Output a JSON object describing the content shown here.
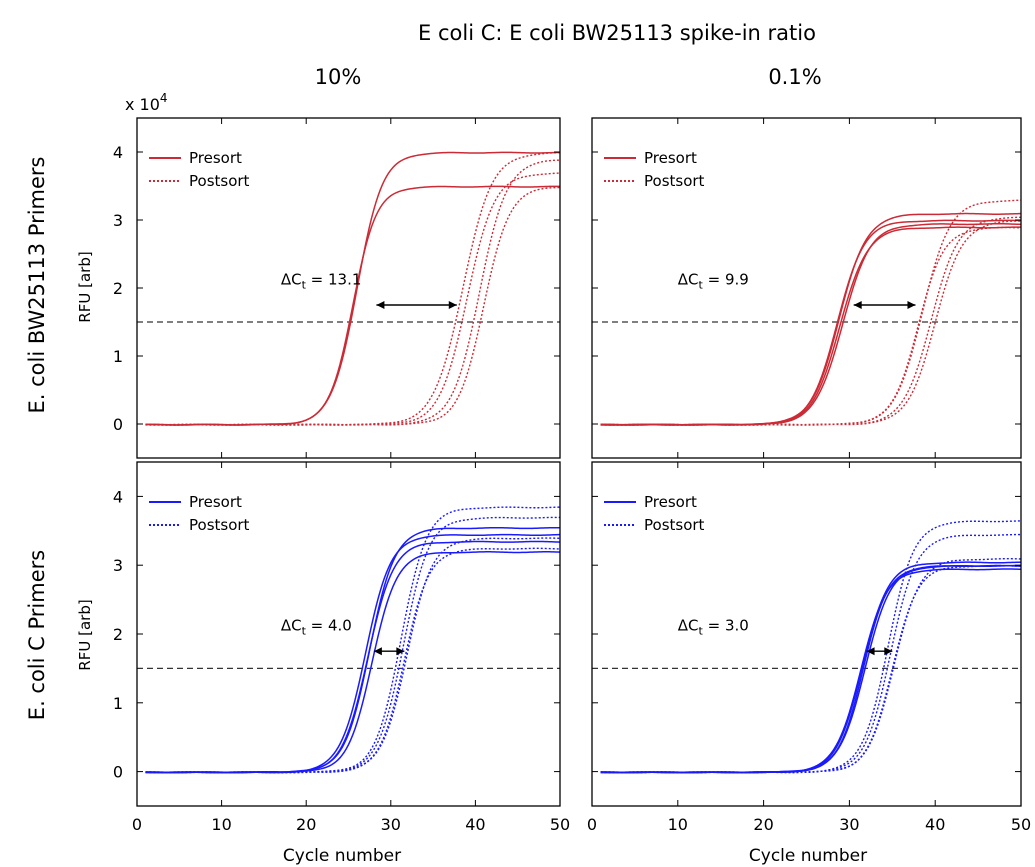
{
  "figure": {
    "title": "E coli C: E coli BW25113 spike-in ratio",
    "col_labels": [
      "10%",
      "0.1%"
    ],
    "row_labels": [
      "E. coli BW25113 Primers",
      "E. coli C Primers"
    ],
    "y_multiplier_base": "x 10",
    "y_multiplier_exp": "4",
    "ylabel": "RFU [arb]",
    "xlabel": "Cycle number",
    "threshold_y": 1.5,
    "threshold_style": "dashed",
    "colors": {
      "red": "#cc2a35",
      "blue": "#1a1aff",
      "threshold": "#333333",
      "arrow": "#000000"
    }
  },
  "chart_data": [
    {
      "type": "line",
      "panel": "BW25113 primers, 10%",
      "color": "red",
      "xlim": [
        0,
        50
      ],
      "ylim": [
        -0.5,
        4.5
      ],
      "xticks": [
        0,
        10,
        20,
        30,
        40,
        50
      ],
      "yticks": [
        0,
        1,
        2,
        3,
        4
      ],
      "legend": [
        "Presort",
        "Postsort"
      ],
      "legend_position": "top-left",
      "annotation": {
        "prefix": "ΔC",
        "sub": "t",
        "suffix": " = 13.1",
        "arrow_x": [
          28.3,
          37.8
        ],
        "arrow_y": 1.75,
        "text_x": 17,
        "text_y": 2.05
      },
      "series": [
        {
          "name": "Presort",
          "style": "solid",
          "curves": [
            {
              "c": 26.0,
              "p": 4.0,
              "k": 1.5
            },
            {
              "c": 25.5,
              "p": 3.5,
              "k": 1.4
            }
          ]
        },
        {
          "name": "Postsort",
          "style": "dotted",
          "curves": [
            {
              "c": 39.0,
              "p": 3.7,
              "k": 1.6
            },
            {
              "c": 38.5,
              "p": 4.0,
              "k": 1.7
            },
            {
              "c": 40.5,
              "p": 3.9,
              "k": 1.6
            },
            {
              "c": 41.0,
              "p": 3.5,
              "k": 1.5
            }
          ]
        }
      ]
    },
    {
      "type": "line",
      "panel": "BW25113 primers, 0.1%",
      "color": "red",
      "xlim": [
        0,
        50
      ],
      "ylim": [
        -0.5,
        4.5
      ],
      "xticks": [
        0,
        10,
        20,
        30,
        40,
        50
      ],
      "yticks": [
        0,
        1,
        2,
        3,
        4
      ],
      "legend": [
        "Presort",
        "Postsort"
      ],
      "legend_position": "top-left",
      "annotation": {
        "prefix": "ΔC",
        "sub": "t",
        "suffix": " = 9.9",
        "arrow_x": [
          30.5,
          37.7
        ],
        "arrow_y": 1.75,
        "text_x": 10,
        "text_y": 2.05
      },
      "series": [
        {
          "name": "Presort",
          "style": "solid",
          "curves": [
            {
              "c": 28.8,
              "p": 3.1,
              "k": 1.6
            },
            {
              "c": 28.9,
              "p": 2.9,
              "k": 1.6
            },
            {
              "c": 28.6,
              "p": 3.0,
              "k": 1.55
            },
            {
              "c": 29.2,
              "p": 2.95,
              "k": 1.6
            }
          ]
        },
        {
          "name": "Postsort",
          "style": "dotted",
          "curves": [
            {
              "c": 38.5,
              "p": 3.3,
              "k": 1.6
            },
            {
              "c": 39.5,
              "p": 3.05,
              "k": 1.6
            },
            {
              "c": 40.0,
              "p": 3.0,
              "k": 1.6
            },
            {
              "c": 38.0,
              "p": 2.9,
              "k": 1.5
            }
          ]
        }
      ]
    },
    {
      "type": "line",
      "panel": "C primers, 10%",
      "color": "blue",
      "xlim": [
        0,
        50
      ],
      "ylim": [
        -0.5,
        4.5
      ],
      "xticks": [
        0,
        10,
        20,
        30,
        40,
        50
      ],
      "yticks": [
        0,
        1,
        2,
        3,
        4
      ],
      "legend": [
        "Presort",
        "Postsort"
      ],
      "legend_position": "top-left",
      "annotation": {
        "prefix": "ΔC",
        "sub": "t",
        "suffix": " = 4.0",
        "arrow_x": [
          28.0,
          31.6
        ],
        "arrow_y": 1.75,
        "text_x": 17,
        "text_y": 2.05
      },
      "series": [
        {
          "name": "Presort",
          "style": "solid",
          "curves": [
            {
              "c": 27.0,
              "p": 3.45,
              "k": 1.5
            },
            {
              "c": 27.5,
              "p": 3.55,
              "k": 1.5
            },
            {
              "c": 27.8,
              "p": 3.2,
              "k": 1.45
            },
            {
              "c": 27.3,
              "p": 3.35,
              "k": 1.5
            }
          ]
        },
        {
          "name": "Postsort",
          "style": "dotted",
          "curves": [
            {
              "c": 31.2,
              "p": 3.85,
              "k": 1.5
            },
            {
              "c": 31.5,
              "p": 3.7,
              "k": 1.5
            },
            {
              "c": 31.9,
              "p": 3.4,
              "k": 1.5
            },
            {
              "c": 31.6,
              "p": 3.25,
              "k": 1.45
            }
          ]
        }
      ]
    },
    {
      "type": "line",
      "panel": "C primers, 0.1%",
      "color": "blue",
      "xlim": [
        0,
        50
      ],
      "ylim": [
        -0.5,
        4.5
      ],
      "xticks": [
        0,
        10,
        20,
        30,
        40,
        50
      ],
      "yticks": [
        0,
        1,
        2,
        3,
        4
      ],
      "legend": [
        "Presort",
        "Postsort"
      ],
      "legend_position": "top-left",
      "annotation": {
        "prefix": "ΔC",
        "sub": "t",
        "suffix": " = 3.0",
        "arrow_x": [
          32.0,
          35.0
        ],
        "arrow_y": 1.75,
        "text_x": 10,
        "text_y": 2.05
      },
      "series": [
        {
          "name": "Presort",
          "style": "solid",
          "curves": [
            {
              "c": 31.5,
              "p": 3.05,
              "k": 1.5
            },
            {
              "c": 31.8,
              "p": 3.0,
              "k": 1.5
            },
            {
              "c": 31.3,
              "p": 2.95,
              "k": 1.5
            },
            {
              "c": 31.6,
              "p": 3.0,
              "k": 1.45
            }
          ]
        },
        {
          "name": "Postsort",
          "style": "dotted",
          "curves": [
            {
              "c": 34.5,
              "p": 3.65,
              "k": 1.5
            },
            {
              "c": 34.8,
              "p": 3.45,
              "k": 1.5
            },
            {
              "c": 35.2,
              "p": 3.1,
              "k": 1.5
            },
            {
              "c": 35.0,
              "p": 3.0,
              "k": 1.45
            }
          ]
        }
      ]
    }
  ]
}
